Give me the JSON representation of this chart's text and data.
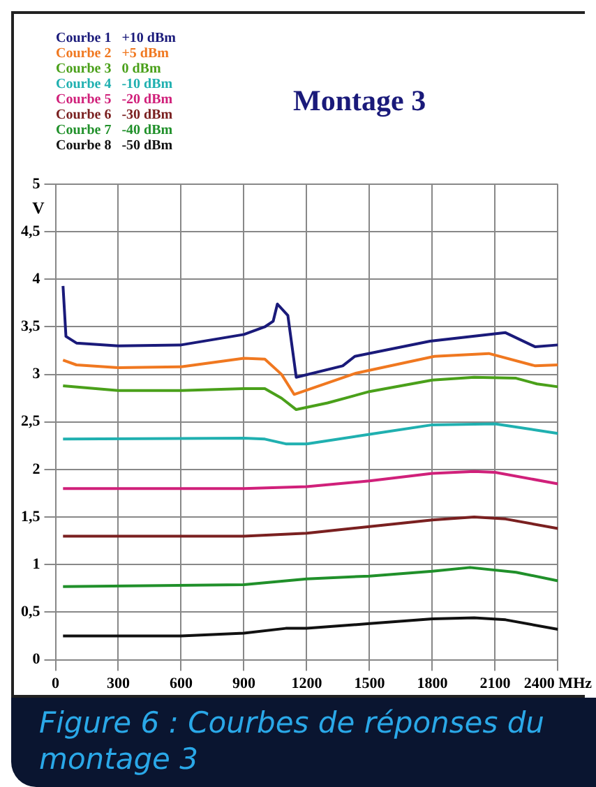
{
  "chart_data": {
    "type": "line",
    "title": "Montage 3",
    "ylabel": "V",
    "xlim": [
      0,
      2400
    ],
    "xticks": [
      0,
      300,
      600,
      900,
      1200,
      1500,
      1800,
      2100,
      {
        "value": 2400,
        "label": "2400 MHz"
      }
    ],
    "ylim": [
      0,
      5
    ],
    "yticks": [
      0,
      {
        "value": 0.5,
        "label": "0,5"
      },
      1,
      {
        "value": 1.5,
        "label": "1,5"
      },
      2,
      {
        "value": 2.5,
        "label": "2,5"
      },
      3,
      {
        "value": 3.5,
        "label": "3,5"
      },
      4,
      {
        "value": 4.5,
        "label": "4,5"
      },
      5
    ],
    "grid": true,
    "legend": "top left",
    "marker": "none",
    "line_style": "solid",
    "annotations": [
      "Figure 6 : Courbes de réponses du montage 3"
    ],
    "series": [
      {
        "name": "Courbe 1   +10 dBm",
        "color": "#1a1a7a",
        "x": [
          36,
          50,
          100,
          300,
          600,
          900,
          1000,
          1040,
          1060,
          1110,
          1150,
          1372,
          1430,
          1789,
          2148,
          2292,
          2400
        ],
        "values": [
          3.93,
          3.4,
          3.33,
          3.3,
          3.31,
          3.42,
          3.5,
          3.56,
          3.74,
          3.62,
          2.97,
          3.09,
          3.19,
          3.35,
          3.44,
          3.29,
          3.31
        ]
      },
      {
        "name": "Courbe 2   +5 dBm",
        "color": "#f07820",
        "x": [
          36,
          100,
          300,
          600,
          900,
          1000,
          1080,
          1140,
          1430,
          1810,
          2070,
          2292,
          2400
        ],
        "values": [
          3.15,
          3.1,
          3.07,
          3.08,
          3.17,
          3.16,
          3.0,
          2.79,
          3.01,
          3.19,
          3.22,
          3.09,
          3.1
        ]
      },
      {
        "name": "Courbe 3   0 dBm",
        "color": "#4aa01a",
        "x": [
          36,
          300,
          600,
          900,
          1000,
          1080,
          1150,
          1300,
          1500,
          1800,
          2000,
          2200,
          2300,
          2400
        ],
        "values": [
          2.88,
          2.83,
          2.83,
          2.85,
          2.85,
          2.75,
          2.63,
          2.7,
          2.82,
          2.94,
          2.97,
          2.96,
          2.9,
          2.87
        ]
      },
      {
        "name": "Courbe 4   -10 dBm",
        "color": "#20b0b0",
        "x": [
          36,
          900,
          1000,
          1100,
          1200,
          1500,
          1800,
          2100,
          2400
        ],
        "values": [
          2.32,
          2.33,
          2.32,
          2.27,
          2.27,
          2.37,
          2.47,
          2.48,
          2.38
        ]
      },
      {
        "name": "Courbe 5   -20 dBm",
        "color": "#d0207a",
        "x": [
          36,
          900,
          1200,
          1500,
          1800,
          2000,
          2100,
          2400
        ],
        "values": [
          1.8,
          1.8,
          1.82,
          1.88,
          1.96,
          1.98,
          1.97,
          1.85
        ]
      },
      {
        "name": "Courbe 6   -30 dBm",
        "color": "#7a2020",
        "x": [
          36,
          900,
          1200,
          1500,
          1800,
          2000,
          2150,
          2400
        ],
        "values": [
          1.3,
          1.3,
          1.33,
          1.4,
          1.47,
          1.5,
          1.48,
          1.38
        ]
      },
      {
        "name": "Courbe 7   -40 dBm",
        "color": "#20902a",
        "x": [
          36,
          900,
          1200,
          1500,
          1800,
          1980,
          2200,
          2400
        ],
        "values": [
          0.77,
          0.79,
          0.85,
          0.88,
          0.93,
          0.97,
          0.92,
          0.83
        ]
      },
      {
        "name": "Courbe 8   -50 dBm",
        "color": "#111111",
        "x": [
          36,
          600,
          900,
          1100,
          1200,
          1500,
          1800,
          2000,
          2150,
          2400
        ],
        "values": [
          0.25,
          0.25,
          0.28,
          0.33,
          0.33,
          0.38,
          0.43,
          0.44,
          0.42,
          0.32
        ]
      }
    ]
  }
}
